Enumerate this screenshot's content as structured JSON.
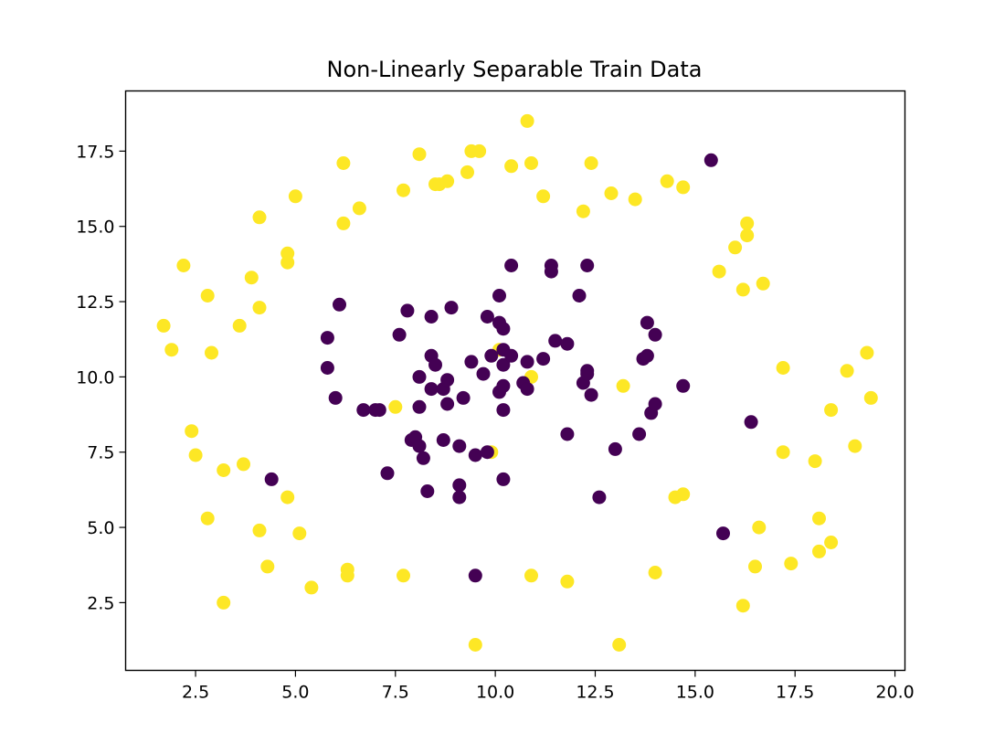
{
  "chart_data": {
    "type": "scatter",
    "title": "Non-Linearly Separable Train Data",
    "xlabel": "",
    "ylabel": "",
    "xlim": [
      0.75,
      20.25
    ],
    "ylim": [
      0.25,
      19.5
    ],
    "xticks": [
      "2.5",
      "5.0",
      "7.5",
      "10.0",
      "12.5",
      "15.0",
      "17.5",
      "20.0"
    ],
    "yticks": [
      "2.5",
      "5.0",
      "7.5",
      "10.0",
      "12.5",
      "15.0",
      "17.5"
    ],
    "grid": false,
    "legend": "none",
    "colors": {
      "class_0": "#440154",
      "class_1": "#fde725"
    },
    "series": [
      {
        "color_key": "class_1",
        "points": [
          [
            1.7,
            11.7
          ],
          [
            1.9,
            10.9
          ],
          [
            2.2,
            13.7
          ],
          [
            2.4,
            8.2
          ],
          [
            2.5,
            7.4
          ],
          [
            2.8,
            12.7
          ],
          [
            2.9,
            10.8
          ],
          [
            2.8,
            5.3
          ],
          [
            3.2,
            6.9
          ],
          [
            3.2,
            2.5
          ],
          [
            3.6,
            11.7
          ],
          [
            3.7,
            7.1
          ],
          [
            3.9,
            13.3
          ],
          [
            4.1,
            15.3
          ],
          [
            4.1,
            12.3
          ],
          [
            4.1,
            4.9
          ],
          [
            4.3,
            3.7
          ],
          [
            4.8,
            14.1
          ],
          [
            4.8,
            13.8
          ],
          [
            4.8,
            6.0
          ],
          [
            5.0,
            16.0
          ],
          [
            5.1,
            4.8
          ],
          [
            5.4,
            3.0
          ],
          [
            6.2,
            17.1
          ],
          [
            6.2,
            15.1
          ],
          [
            6.3,
            3.6
          ],
          [
            6.3,
            3.4
          ],
          [
            6.6,
            15.6
          ],
          [
            7.5,
            9.0
          ],
          [
            7.7,
            16.2
          ],
          [
            7.7,
            3.4
          ],
          [
            8.1,
            17.4
          ],
          [
            8.5,
            16.4
          ],
          [
            8.6,
            16.4
          ],
          [
            8.8,
            16.5
          ],
          [
            9.3,
            16.8
          ],
          [
            9.4,
            17.5
          ],
          [
            9.6,
            17.5
          ],
          [
            9.9,
            7.5
          ],
          [
            10.1,
            10.9
          ],
          [
            10.4,
            17.0
          ],
          [
            10.8,
            18.5
          ],
          [
            10.9,
            17.1
          ],
          [
            10.9,
            3.4
          ],
          [
            10.9,
            10.0
          ],
          [
            11.2,
            16.0
          ],
          [
            11.8,
            3.2
          ],
          [
            12.2,
            15.5
          ],
          [
            12.4,
            17.1
          ],
          [
            12.9,
            16.1
          ],
          [
            13.2,
            9.7
          ],
          [
            13.1,
            1.1
          ],
          [
            13.5,
            15.9
          ],
          [
            14.0,
            3.5
          ],
          [
            14.3,
            16.5
          ],
          [
            14.5,
            6.0
          ],
          [
            14.7,
            6.1
          ],
          [
            14.7,
            16.3
          ],
          [
            15.6,
            13.5
          ],
          [
            16.0,
            14.3
          ],
          [
            16.2,
            12.9
          ],
          [
            16.3,
            14.7
          ],
          [
            16.3,
            15.1
          ],
          [
            16.2,
            2.4
          ],
          [
            16.5,
            3.7
          ],
          [
            16.6,
            5.0
          ],
          [
            16.7,
            13.1
          ],
          [
            17.2,
            10.3
          ],
          [
            17.2,
            7.5
          ],
          [
            17.4,
            3.8
          ],
          [
            18.0,
            7.2
          ],
          [
            18.1,
            5.3
          ],
          [
            18.1,
            4.2
          ],
          [
            18.4,
            4.5
          ],
          [
            18.4,
            8.9
          ],
          [
            18.8,
            10.2
          ],
          [
            19.0,
            7.7
          ],
          [
            19.3,
            10.8
          ],
          [
            19.4,
            9.3
          ],
          [
            9.5,
            1.1
          ]
        ]
      },
      {
        "color_key": "class_0",
        "points": [
          [
            4.4,
            6.6
          ],
          [
            5.8,
            11.3
          ],
          [
            5.8,
            10.3
          ],
          [
            6.0,
            9.3
          ],
          [
            6.1,
            12.4
          ],
          [
            6.7,
            8.9
          ],
          [
            7.0,
            8.9
          ],
          [
            7.1,
            8.9
          ],
          [
            7.3,
            6.8
          ],
          [
            7.6,
            11.4
          ],
          [
            7.8,
            12.2
          ],
          [
            7.9,
            7.9
          ],
          [
            8.0,
            8.0
          ],
          [
            8.1,
            10.0
          ],
          [
            8.1,
            7.7
          ],
          [
            8.1,
            9.0
          ],
          [
            8.2,
            7.3
          ],
          [
            8.3,
            6.2
          ],
          [
            8.4,
            12.0
          ],
          [
            8.4,
            10.7
          ],
          [
            8.4,
            9.6
          ],
          [
            8.5,
            10.4
          ],
          [
            8.7,
            9.6
          ],
          [
            8.7,
            7.9
          ],
          [
            8.8,
            9.9
          ],
          [
            8.8,
            9.1
          ],
          [
            8.9,
            12.3
          ],
          [
            9.1,
            6.4
          ],
          [
            9.1,
            6.0
          ],
          [
            9.1,
            7.7
          ],
          [
            9.2,
            9.3
          ],
          [
            9.4,
            10.5
          ],
          [
            9.5,
            3.4
          ],
          [
            9.5,
            7.4
          ],
          [
            9.7,
            10.1
          ],
          [
            9.8,
            12.0
          ],
          [
            9.8,
            7.5
          ],
          [
            9.9,
            10.7
          ],
          [
            10.1,
            12.7
          ],
          [
            10.1,
            11.8
          ],
          [
            10.1,
            9.5
          ],
          [
            10.2,
            11.6
          ],
          [
            10.2,
            10.9
          ],
          [
            10.2,
            10.4
          ],
          [
            10.2,
            9.7
          ],
          [
            10.2,
            8.9
          ],
          [
            10.2,
            6.6
          ],
          [
            10.4,
            13.7
          ],
          [
            10.4,
            10.7
          ],
          [
            10.7,
            9.8
          ],
          [
            10.8,
            10.5
          ],
          [
            10.8,
            9.6
          ],
          [
            11.2,
            10.6
          ],
          [
            11.4,
            13.7
          ],
          [
            11.4,
            13.5
          ],
          [
            11.5,
            11.2
          ],
          [
            11.8,
            11.1
          ],
          [
            11.8,
            8.1
          ],
          [
            12.1,
            12.7
          ],
          [
            12.2,
            9.8
          ],
          [
            12.3,
            13.7
          ],
          [
            12.3,
            10.2
          ],
          [
            12.3,
            10.1
          ],
          [
            12.4,
            9.4
          ],
          [
            12.6,
            6.0
          ],
          [
            13.0,
            7.6
          ],
          [
            13.6,
            8.1
          ],
          [
            13.7,
            10.6
          ],
          [
            13.8,
            10.7
          ],
          [
            13.8,
            11.8
          ],
          [
            13.9,
            8.8
          ],
          [
            14.0,
            9.1
          ],
          [
            14.0,
            11.4
          ],
          [
            14.7,
            9.7
          ],
          [
            15.4,
            17.2
          ],
          [
            15.7,
            4.8
          ],
          [
            16.4,
            8.5
          ]
        ]
      }
    ]
  }
}
